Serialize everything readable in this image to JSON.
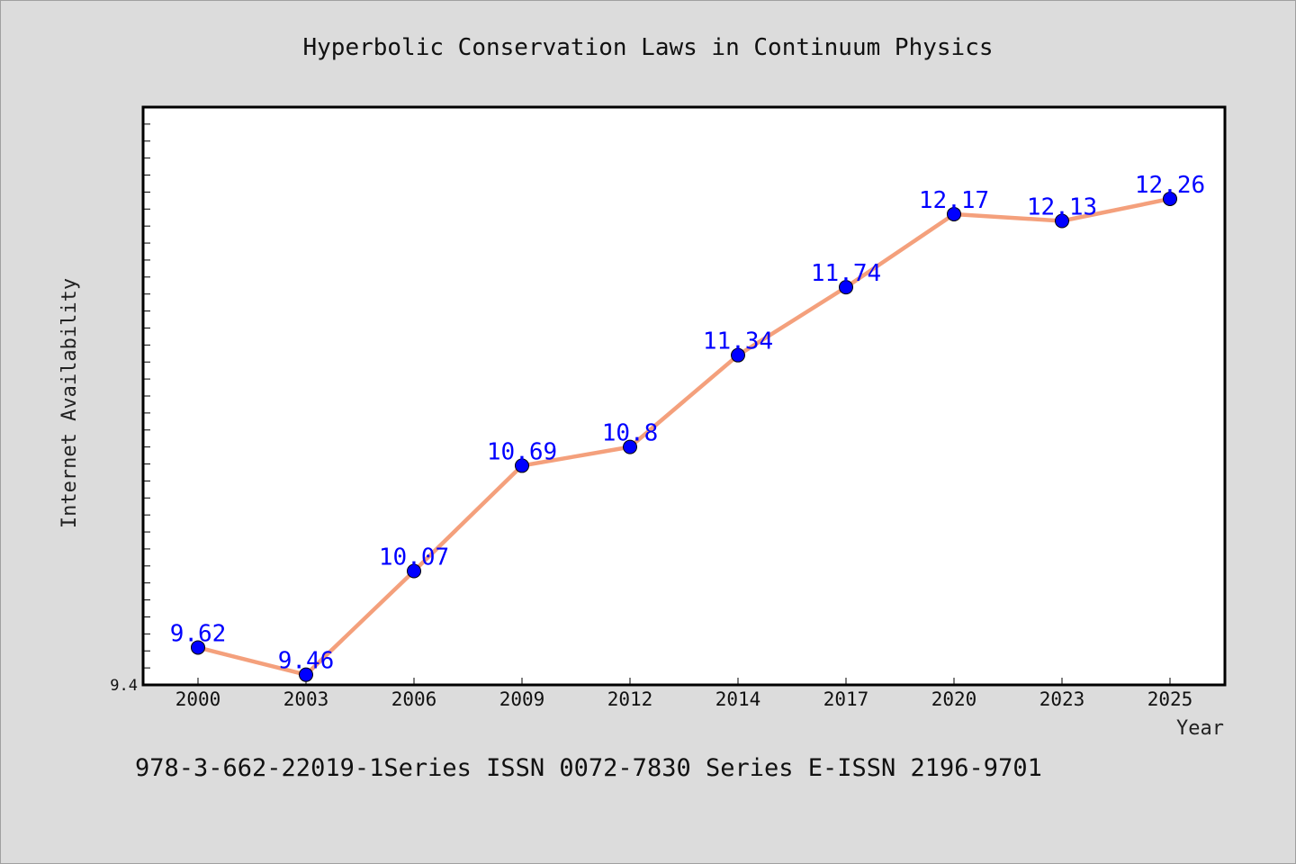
{
  "colors": {
    "background": "#dcdcdc",
    "plot_background": "#ffffff",
    "line": "#f4a07c",
    "marker": "#0000ff",
    "data_label": "#0000ff"
  },
  "footer_text": "978-3-662-22019-1Series ISSN 0072-7830 Series E-ISSN 2196-9701",
  "chart_data": {
    "type": "line",
    "title": "Hyperbolic Conservation Laws in Continuum Physics",
    "xlabel": "Year",
    "ylabel": "Internet Availability",
    "categories": [
      "2000",
      "2003",
      "2006",
      "2009",
      "2012",
      "2014",
      "2017",
      "2020",
      "2023",
      "2025"
    ],
    "series": [
      {
        "values": [
          9.62,
          9.46,
          10.07,
          10.69,
          10.8,
          11.34,
          11.74,
          12.17,
          12.13,
          12.26
        ],
        "labels": [
          "9.62",
          "9.46",
          "10.07",
          "10.69",
          "10.8",
          "11.34",
          "11.74",
          "12.17",
          "12.13",
          "12.26"
        ]
      }
    ],
    "ylim": [
      9.4,
      12.8
    ],
    "y_tick_labels": [
      "9.4"
    ],
    "grid": false,
    "legend": false
  }
}
